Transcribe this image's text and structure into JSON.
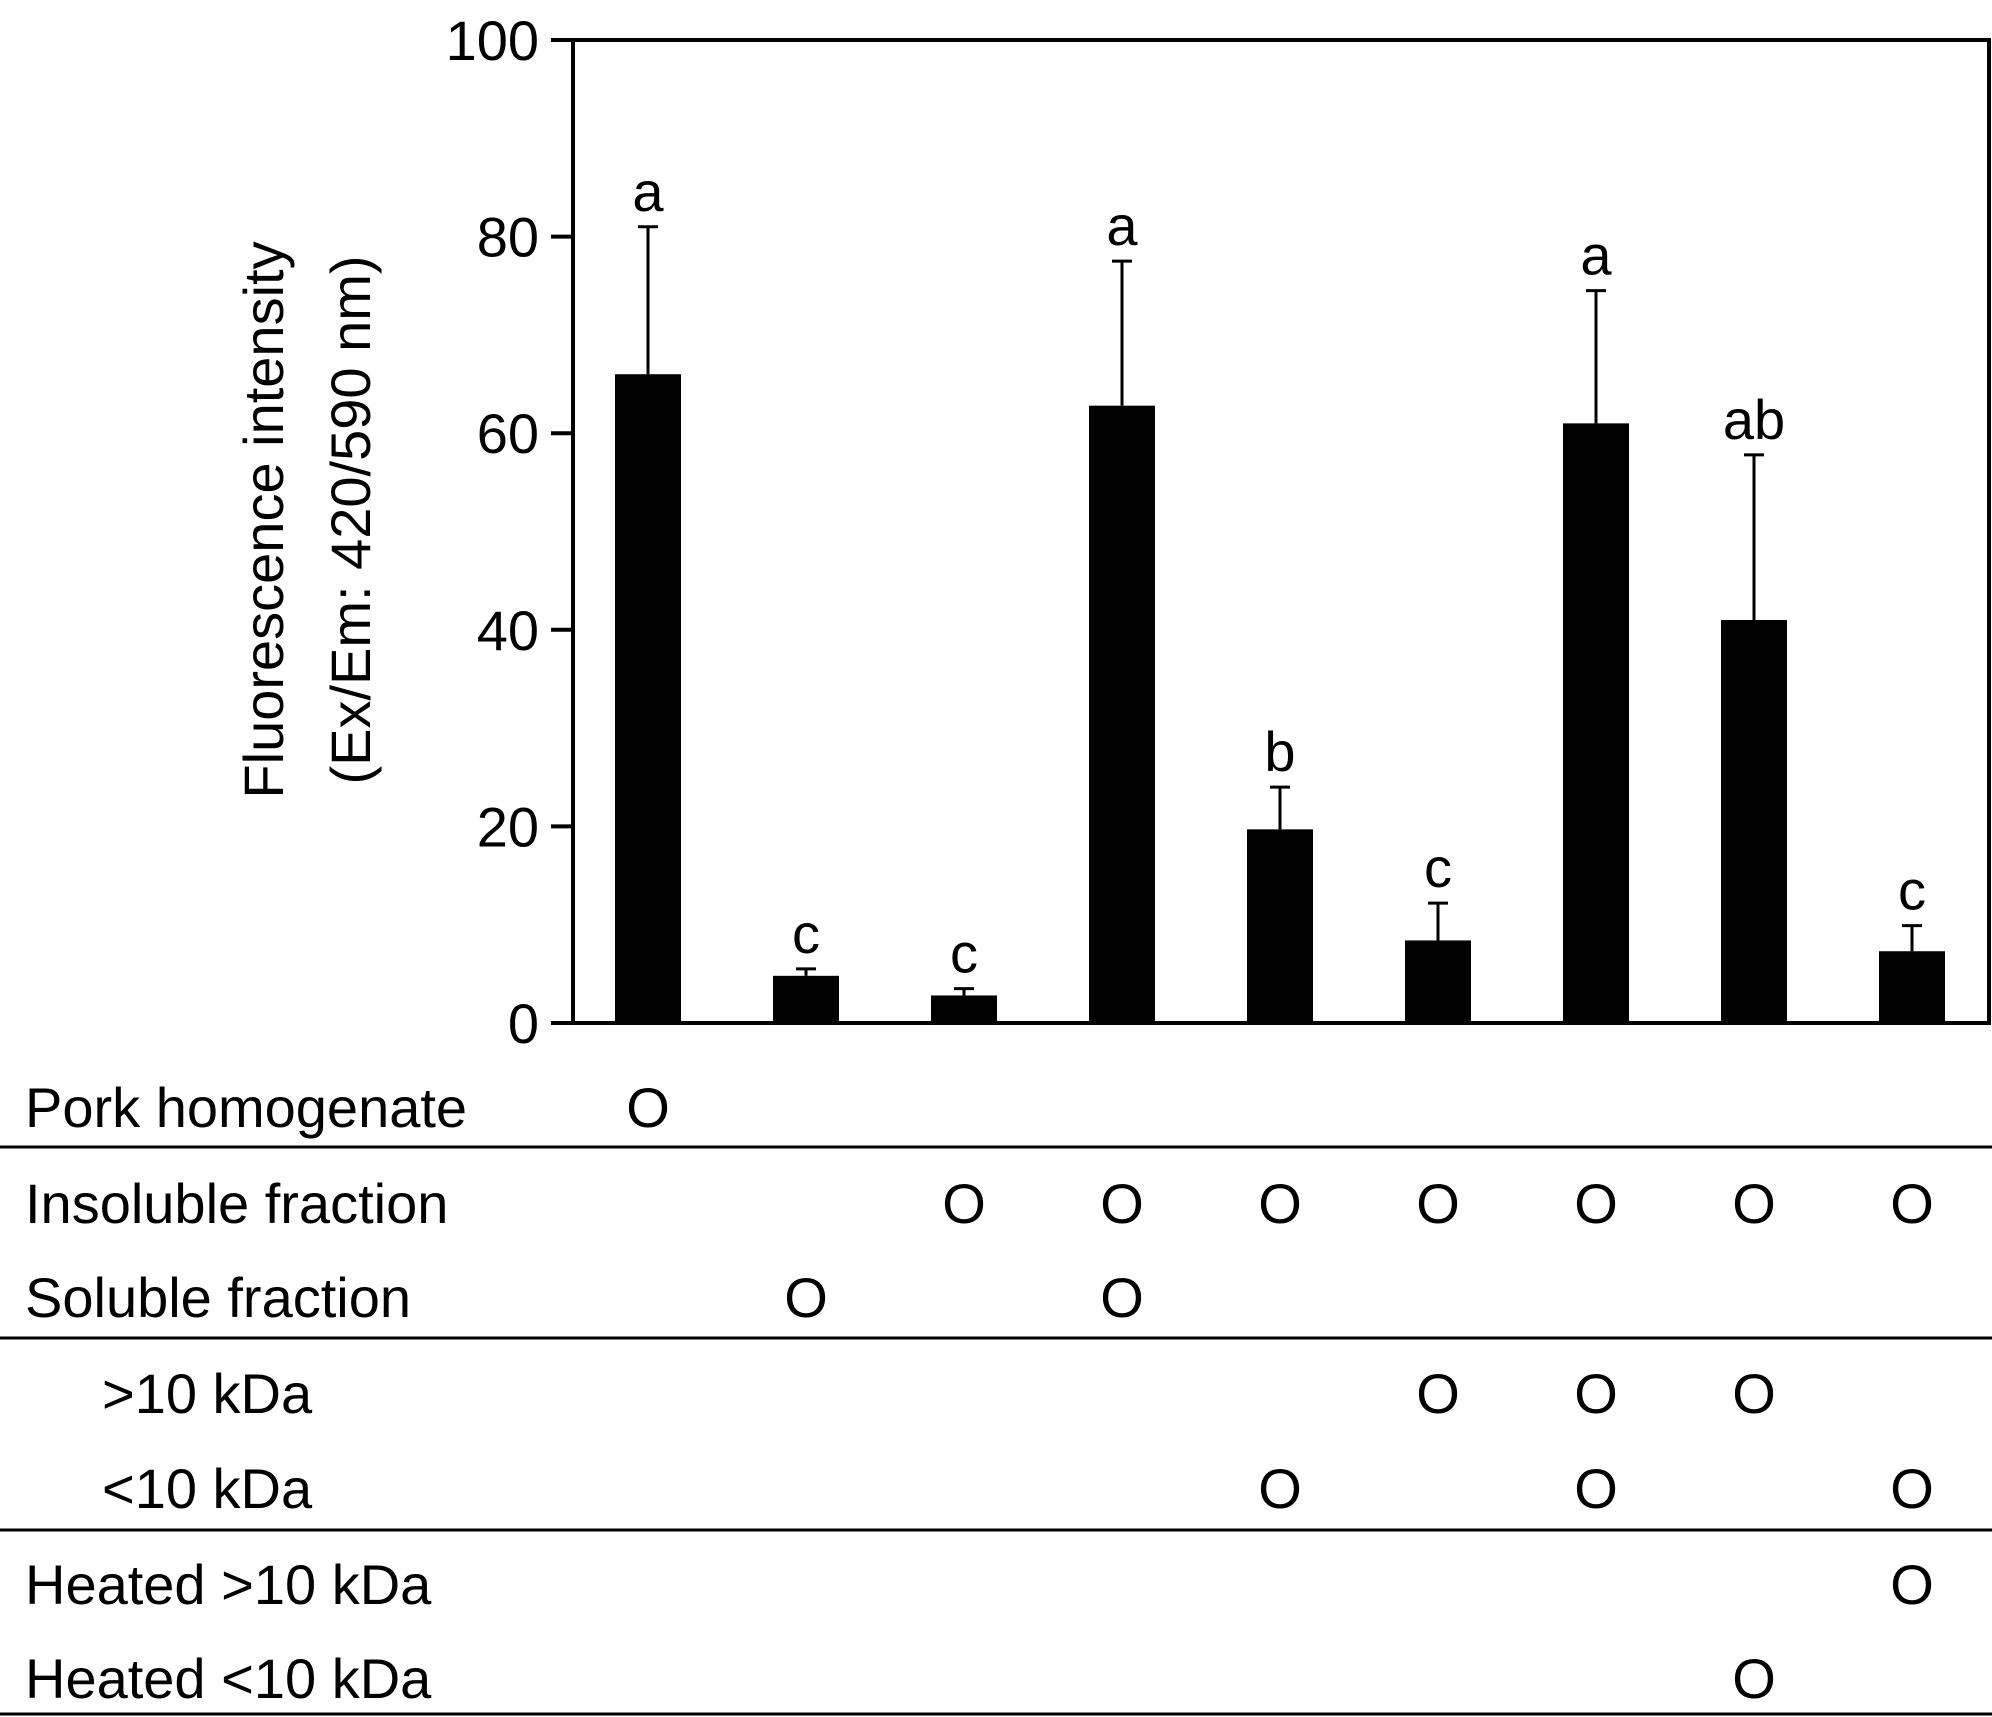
{
  "chart_data": {
    "type": "bar",
    "title": "",
    "ylabel_line1": "Fluorescence intensity",
    "ylabel_line2": "(Ex/Em: 420/590 nm)",
    "xlabel": "",
    "ylim": [
      0,
      100
    ],
    "yticks": [
      "0",
      "20",
      "40",
      "60",
      "80",
      "100"
    ],
    "ytick_values": [
      0,
      20,
      40,
      60,
      80,
      100
    ],
    "grid": false,
    "legend": "none",
    "bar_color": "#000000",
    "groups": [
      1,
      2,
      3,
      4,
      5,
      6,
      7,
      8,
      9
    ],
    "values": [
      66,
      4.8,
      2.8,
      62.8,
      19.7,
      8.4,
      61,
      41,
      7.3
    ],
    "errors": [
      15,
      0.7,
      0.7,
      14.7,
      4.3,
      3.8,
      13.5,
      16.8,
      2.6
    ],
    "significance": [
      "a",
      "c",
      "c",
      "a",
      "b",
      "c",
      "a",
      "ab",
      "c"
    ]
  },
  "table": {
    "mark": "O",
    "rows": [
      {
        "label": "Pork homogenate",
        "indent": false,
        "marks": [
          1
        ]
      },
      {
        "label": "Insoluble fraction",
        "indent": false,
        "marks": [
          3,
          4,
          5,
          6,
          7,
          8,
          9
        ]
      },
      {
        "label": "Soluble fraction",
        "indent": false,
        "marks": [
          2,
          4
        ]
      },
      {
        "label": ">10 kDa",
        "indent": true,
        "marks": [
          6,
          7,
          8
        ]
      },
      {
        "label": "<10 kDa",
        "indent": true,
        "marks": [
          5,
          7,
          9
        ]
      },
      {
        "label": "Heated >10 kDa",
        "indent": false,
        "marks": [
          9
        ]
      },
      {
        "label": "Heated <10 kDa",
        "indent": false,
        "marks": [
          8
        ]
      }
    ]
  }
}
